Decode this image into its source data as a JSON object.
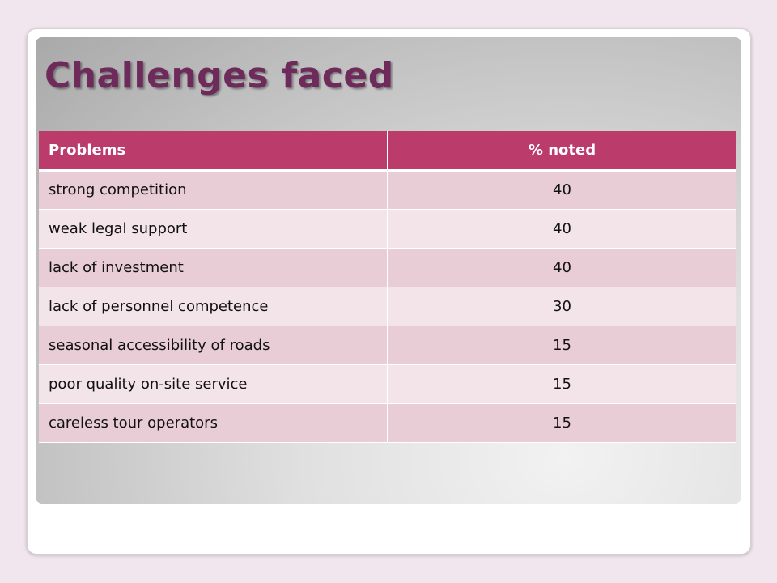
{
  "slide": {
    "title": "Challenges faced"
  },
  "table": {
    "headers": [
      "Problems",
      "% noted"
    ],
    "rows": [
      {
        "problem": "strong competition",
        "value": "40"
      },
      {
        "problem": "weak legal support",
        "value": "40"
      },
      {
        "problem": "lack of investment",
        "value": "40"
      },
      {
        "problem": "lack of personnel competence",
        "value": "30"
      },
      {
        "problem": "seasonal accessibility of roads",
        "value": "15"
      },
      {
        "problem": "poor quality on-site service",
        "value": "15"
      },
      {
        "problem": "careless tour operators",
        "value": "15"
      }
    ]
  },
  "colors": {
    "title": "#6e2a5a",
    "header_bg": "#bb3c6a",
    "row_odd": "#e8ccd6",
    "row_even": "#f3e4ea"
  }
}
